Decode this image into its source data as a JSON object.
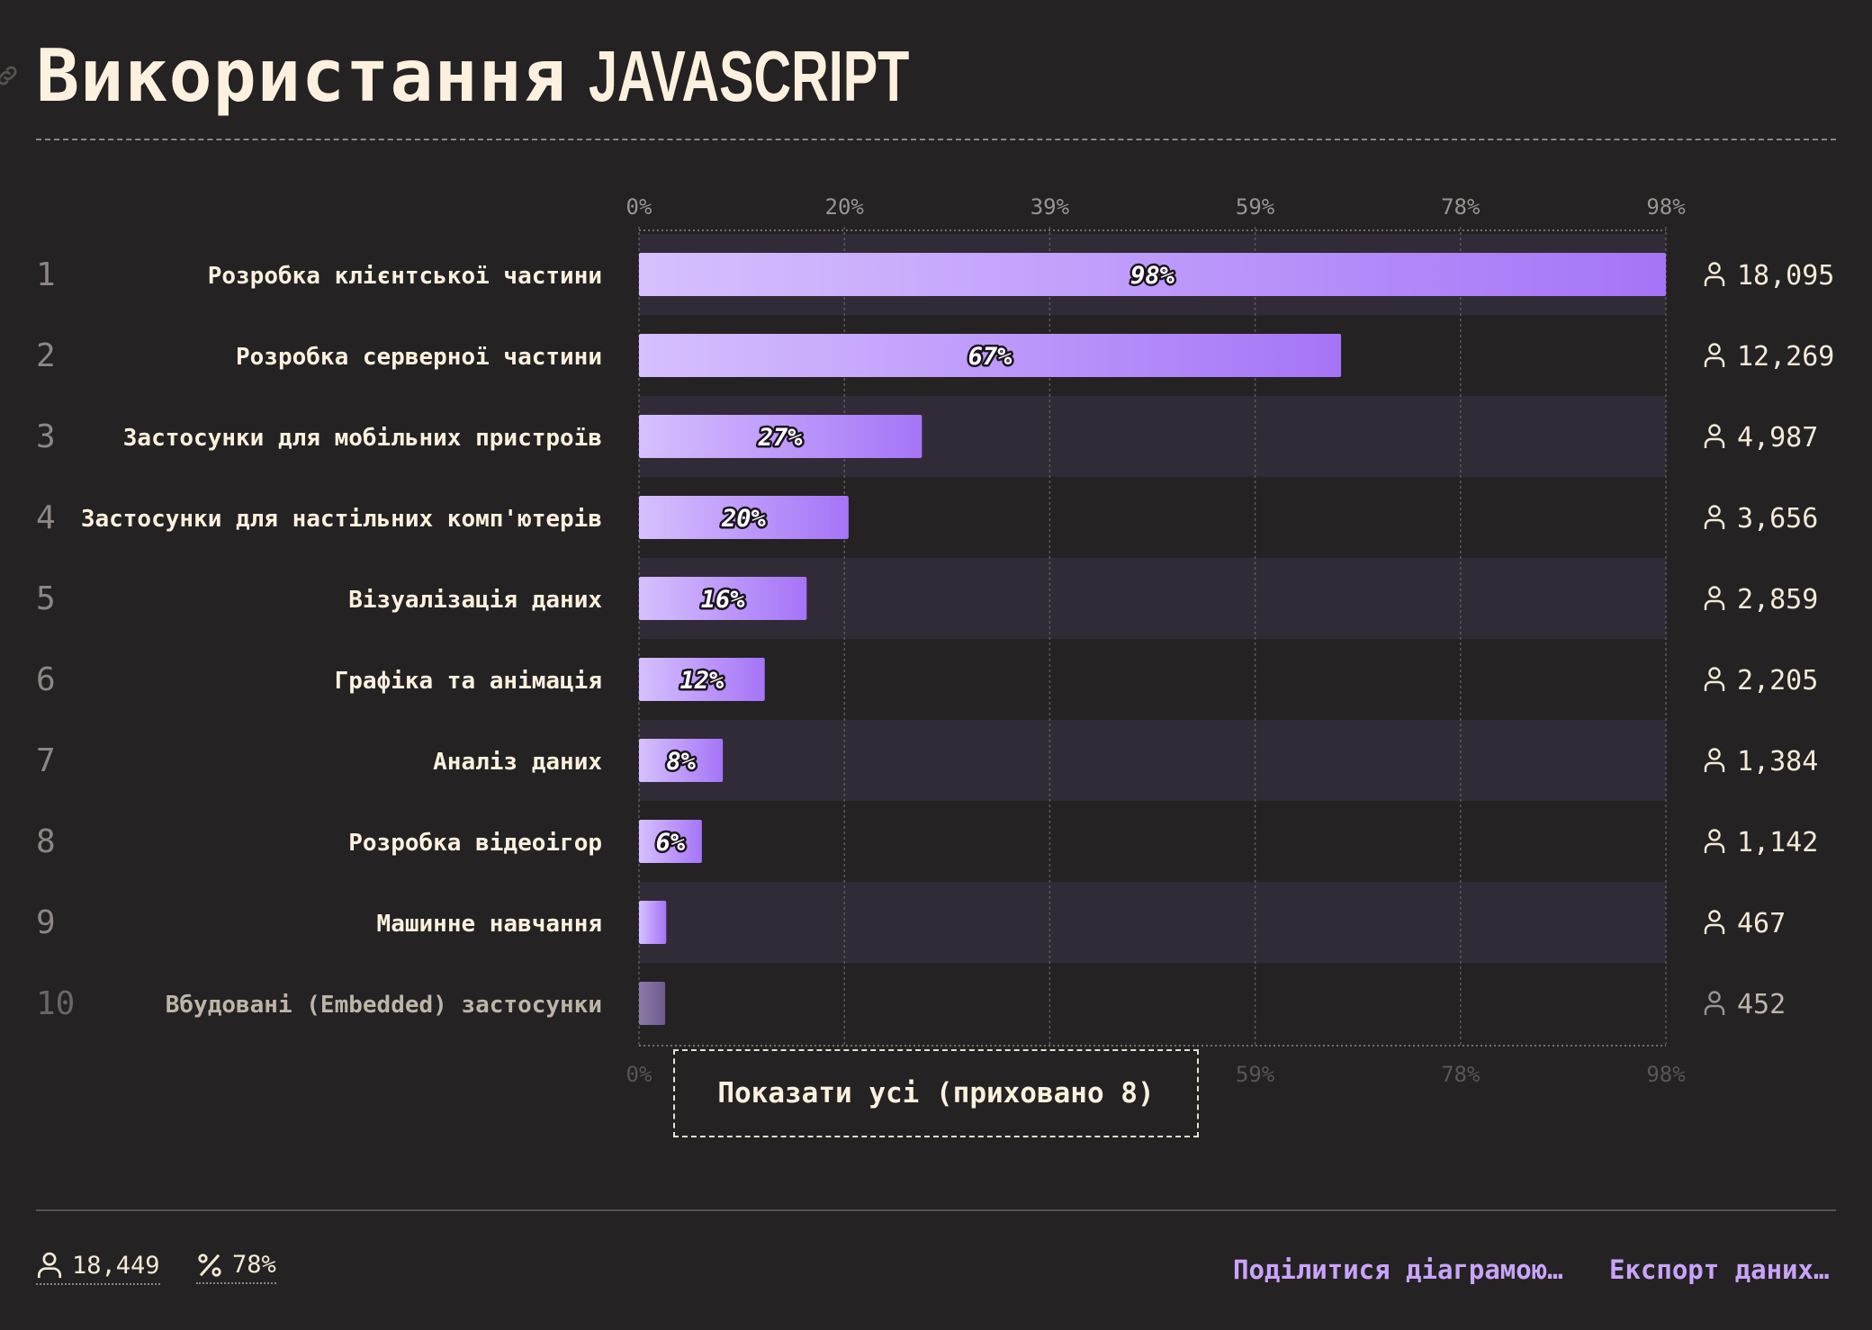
{
  "title": {
    "main": "Використання",
    "accent": "JAVASCRIPT"
  },
  "show_all_label": "Показати усі (приховано 8)",
  "footer": {
    "total_users": "18,449",
    "percent": "78%",
    "share_label": "Поділитися діаграмою…",
    "export_label": "Експорт даних…"
  },
  "colors": {
    "background": "#252223",
    "bar_start": "#d6c0fe",
    "bar_end": "#a574f7",
    "faded_bar_start": "#8c7aa8",
    "faded_bar_end": "#6e5a8e",
    "row_stripe": "#312b37",
    "text": "#fbf1de",
    "link": "#c9a4fb"
  },
  "icons": {
    "link": "link-icon",
    "users": "user-icon",
    "percent": "percent-icon"
  },
  "chart_data": {
    "type": "bar",
    "orientation": "horizontal",
    "ranks": [
      "1",
      "2",
      "3",
      "4",
      "5",
      "6",
      "7",
      "8",
      "9",
      "10"
    ],
    "categories": [
      "Розробка клієнтської частини",
      "Розробка серверної частини",
      "Застосунки для мобільних пристроїв",
      "Застосунки для настільних комп'ютерів",
      "Візуалізація даних",
      "Графіка та анімація",
      "Аналіз даних",
      "Розробка відеоігор",
      "Машинне навчання",
      "Вбудовані (Embedded) застосунки"
    ],
    "values": [
      98,
      67,
      27,
      20,
      16,
      12,
      8,
      6,
      2.6,
      2.5
    ],
    "value_labels": [
      "98%",
      "67%",
      "27%",
      "20%",
      "16%",
      "12%",
      "8%",
      "6%",
      "",
      ""
    ],
    "counts": [
      "18,095",
      "12,269",
      "4,987",
      "3,656",
      "2,859",
      "2,205",
      "1,384",
      "1,142",
      "467",
      "452"
    ],
    "x_ticks": [
      "0%",
      "20%",
      "39%",
      "59%",
      "78%",
      "98%"
    ],
    "x_tick_values": [
      0,
      19.6,
      39.2,
      58.8,
      78.4,
      98
    ],
    "xlim": [
      0,
      98
    ],
    "grid": true
  }
}
